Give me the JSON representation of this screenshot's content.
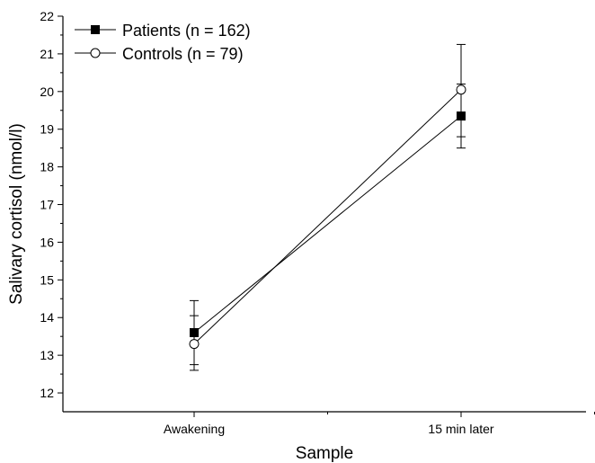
{
  "chart_data": {
    "type": "line",
    "title": "",
    "xlabel": "Sample",
    "ylabel": "Salivary cortisol (nmol/l)",
    "categories": [
      "Awakening",
      "15 min later"
    ],
    "ylim": [
      11.5,
      22
    ],
    "yticks": [
      12,
      13,
      14,
      15,
      16,
      17,
      18,
      19,
      20,
      21,
      22
    ],
    "grid": false,
    "legend_position": "top-left",
    "series": [
      {
        "name": "Patients (n = 162)",
        "marker": "filled-square",
        "values": [
          13.6,
          19.35
        ],
        "error_low": [
          12.75,
          18.5
        ],
        "error_high": [
          14.45,
          20.2
        ]
      },
      {
        "name": "Controls (n = 79)",
        "marker": "open-circle",
        "values": [
          13.3,
          20.05
        ],
        "error_low": [
          12.6,
          18.8
        ],
        "error_high": [
          14.05,
          21.25
        ]
      }
    ],
    "colors": {
      "line": "#000000",
      "background": "#ffffff"
    }
  }
}
